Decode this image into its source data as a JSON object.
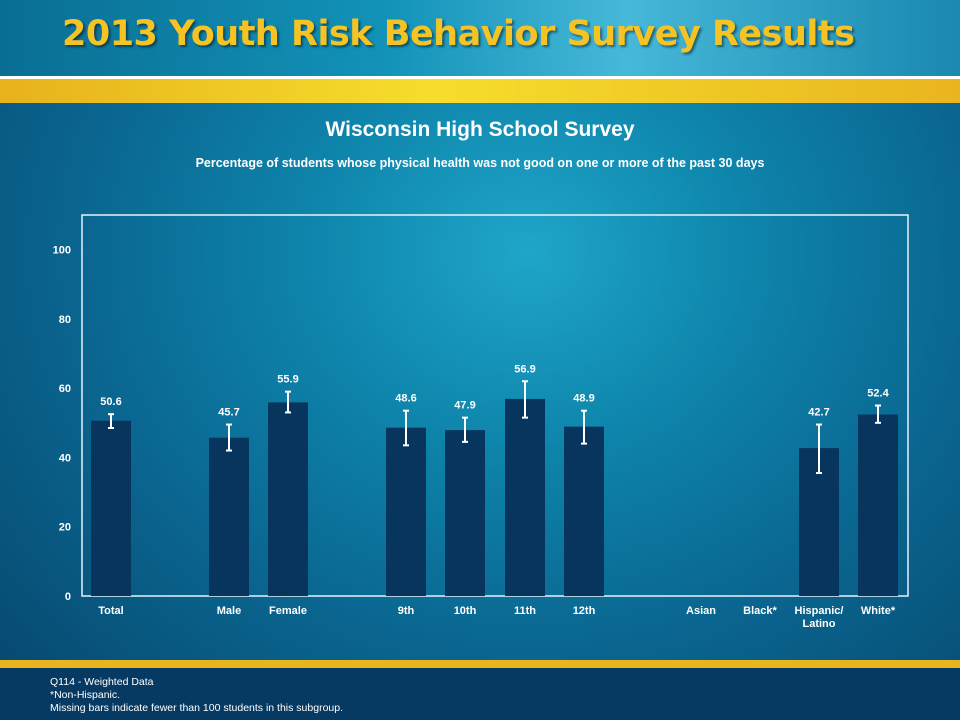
{
  "header": {
    "title": "2013 Youth Risk Behavior Survey Results"
  },
  "chart_data": {
    "type": "bar",
    "title": "Wisconsin High School Survey",
    "subtitle": "Percentage of students whose physical health was not good on one or more of the past 30 days",
    "xlabel": "",
    "ylabel": "",
    "ylim": [
      0,
      110
    ],
    "yticks": [
      0,
      20,
      40,
      60,
      80,
      100
    ],
    "grid": false,
    "bar_color": "#07355e",
    "errorbar_color": "#ffffff",
    "categories": [
      {
        "label": "Total",
        "value": 50.6,
        "ci": [
          48.5,
          52.5
        ],
        "value_label": "50.6"
      },
      {
        "label": "Male",
        "value": 45.7,
        "ci": [
          42.0,
          49.5
        ],
        "value_label": "45.7"
      },
      {
        "label": "Female",
        "value": 55.9,
        "ci": [
          53.0,
          59.0
        ],
        "value_label": "55.9"
      },
      {
        "label": "9th",
        "value": 48.6,
        "ci": [
          43.5,
          53.5
        ],
        "value_label": "48.6"
      },
      {
        "label": "10th",
        "value": 47.9,
        "ci": [
          44.5,
          51.5
        ],
        "value_label": "47.9"
      },
      {
        "label": "11th",
        "value": 56.9,
        "ci": [
          51.5,
          62.0
        ],
        "value_label": "56.9"
      },
      {
        "label": "12th",
        "value": 48.9,
        "ci": [
          44.0,
          53.5
        ],
        "value_label": "48.9"
      },
      {
        "label": "Asian",
        "value": null,
        "ci": null,
        "value_label": ""
      },
      {
        "label": "Black*",
        "value": null,
        "ci": null,
        "value_label": ""
      },
      {
        "label": "Hispanic/\nLatino",
        "value": 42.7,
        "ci": [
          35.5,
          49.5
        ],
        "value_label": "42.7"
      },
      {
        "label": "White*",
        "value": 52.4,
        "ci": [
          50.0,
          55.0
        ],
        "value_label": "52.4"
      }
    ]
  },
  "footer": {
    "line1": "Q114 - Weighted Data",
    "line2": "*Non-Hispanic.",
    "line3": "Missing bars indicate fewer than 100 students in this subgroup."
  }
}
